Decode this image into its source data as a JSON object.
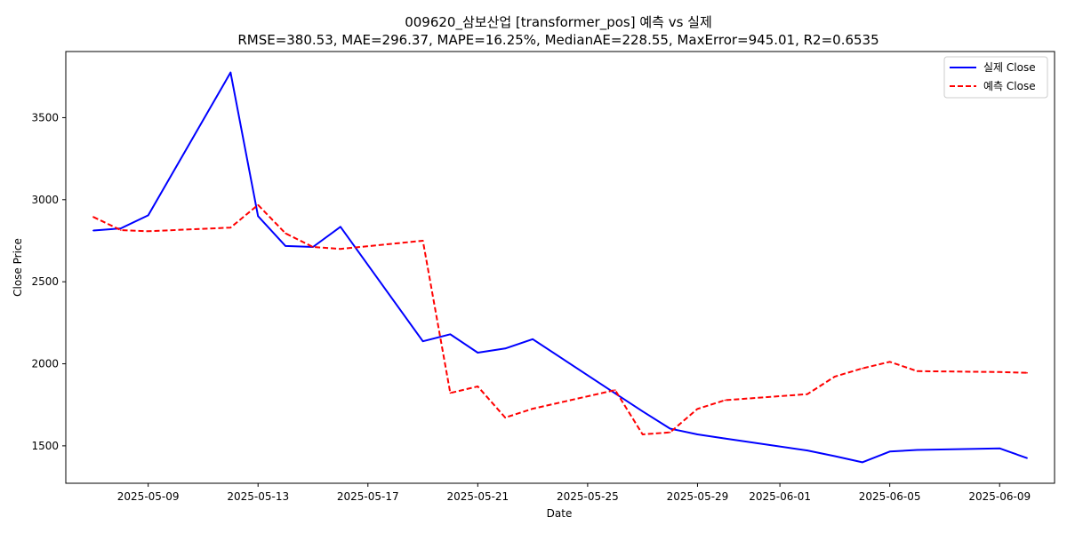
{
  "chart_data": {
    "type": "line",
    "title": "009620_삼보산업 [transformer_pos] 예측 vs 실제",
    "subtitle": "RMSE=380.53, MAE=296.37, MAPE=16.25%, MedianAE=228.55, MaxError=945.01, R2=0.6535",
    "xlabel": "Date",
    "ylabel": "Close Price",
    "x": [
      "2025-05-07",
      "2025-05-08",
      "2025-05-09",
      "2025-05-12",
      "2025-05-13",
      "2025-05-14",
      "2025-05-15",
      "2025-05-16",
      "2025-05-19",
      "2025-05-20",
      "2025-05-21",
      "2025-05-22",
      "2025-05-23",
      "2025-05-26",
      "2025-05-27",
      "2025-05-28",
      "2025-05-29",
      "2025-05-30",
      "2025-06-02",
      "2025-06-03",
      "2025-06-04",
      "2025-06-05",
      "2025-06-06",
      "2025-06-09",
      "2025-06-10"
    ],
    "series": [
      {
        "name": "실제 Close",
        "color": "#0000ff",
        "dash": "solid",
        "values": [
          2812,
          2825,
          2905,
          3775,
          2900,
          2718,
          2712,
          2835,
          2137,
          2180,
          2068,
          2093,
          2150,
          1820,
          1710,
          1605,
          1570,
          1545,
          1472,
          1437,
          1400,
          1465,
          1475,
          1485,
          1425
        ]
      },
      {
        "name": "예측 Close",
        "color": "#ff0000",
        "dash": "dashed",
        "values": [
          2895,
          2815,
          2808,
          2830,
          2968,
          2795,
          2712,
          2700,
          2750,
          1822,
          1862,
          1672,
          1726,
          1840,
          1570,
          1582,
          1725,
          1778,
          1815,
          1922,
          1972,
          2012,
          1955,
          1950,
          1945
        ]
      }
    ],
    "xticks": [
      "2025-05-09",
      "2025-05-13",
      "2025-05-17",
      "2025-05-21",
      "2025-05-25",
      "2025-05-29",
      "2025-06-01",
      "2025-06-05",
      "2025-06-09"
    ],
    "yticks": [
      1500,
      2000,
      2500,
      3000,
      3500
    ],
    "xlim": [
      "2025-05-06",
      "2025-06-11"
    ],
    "ylim": [
      1272,
      3903
    ],
    "legend": {
      "position": "top-right",
      "entries": [
        "실제 Close",
        "예측 Close"
      ]
    }
  }
}
